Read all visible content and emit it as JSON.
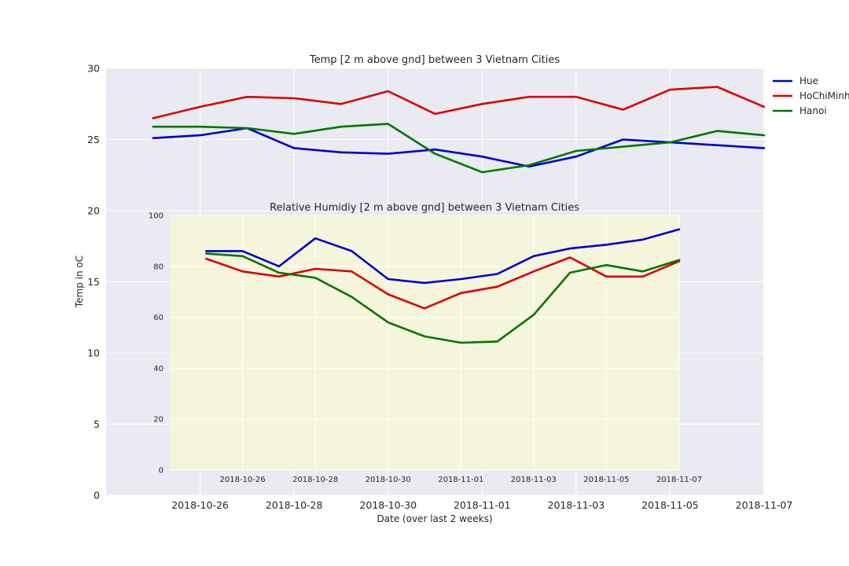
{
  "chart_data": [
    {
      "type": "line",
      "title": "Temp  [2 m above gnd] between 3 Vietnam Cities",
      "xlabel": "Date (over last 2 weeks)",
      "ylabel": "Temp in oC",
      "x_ticks": [
        "2018-10-26",
        "2018-10-28",
        "2018-10-30",
        "2018-11-01",
        "2018-11-03",
        "2018-11-05",
        "2018-11-07"
      ],
      "y_ticks": [
        0,
        5,
        10,
        15,
        20,
        25,
        30
      ],
      "xlim": [
        "2018-10-24",
        "2018-11-07"
      ],
      "ylim": [
        0,
        30
      ],
      "grid": true,
      "legend": "outside-right",
      "x": [
        "2018-10-25",
        "2018-10-26",
        "2018-10-27",
        "2018-10-28",
        "2018-10-29",
        "2018-10-30",
        "2018-10-31",
        "2018-11-01",
        "2018-11-02",
        "2018-11-03",
        "2018-11-04",
        "2018-11-05",
        "2018-11-06",
        "2018-11-07"
      ],
      "series": [
        {
          "name": "Hue",
          "color": "#0000cc",
          "values": [
            25.1,
            25.3,
            25.8,
            24.4,
            24.1,
            24.0,
            24.3,
            23.8,
            23.1,
            23.8,
            25.0,
            24.8,
            24.6,
            24.4
          ]
        },
        {
          "name": "HoChiMinh",
          "color": "#dd0000",
          "values": [
            26.5,
            27.3,
            28.0,
            27.9,
            27.5,
            28.4,
            26.8,
            27.5,
            28.0,
            28.0,
            27.1,
            28.5,
            28.7,
            27.3
          ]
        },
        {
          "name": "Hanoi",
          "color": "#007700",
          "values": [
            25.9,
            25.9,
            25.8,
            25.4,
            25.9,
            26.1,
            24.0,
            22.7,
            23.2,
            24.2,
            24.5,
            24.8,
            25.6,
            25.3
          ]
        }
      ]
    },
    {
      "type": "line",
      "title": "Relative Humidiy  [2 m above gnd] between 3 Vietnam Cities",
      "x_ticks": [
        "2018-10-26",
        "2018-10-28",
        "2018-10-30",
        "2018-11-01",
        "2018-11-03",
        "2018-11-05",
        "2018-11-07"
      ],
      "y_ticks": [
        0,
        20,
        40,
        60,
        80,
        100
      ],
      "xlim": [
        "2018-10-24",
        "2018-11-07"
      ],
      "ylim": [
        0,
        100
      ],
      "grid": true,
      "background": "#f5f5dc",
      "x": [
        "2018-10-25",
        "2018-10-26",
        "2018-10-27",
        "2018-10-28",
        "2018-10-29",
        "2018-10-30",
        "2018-10-31",
        "2018-11-01",
        "2018-11-02",
        "2018-11-03",
        "2018-11-04",
        "2018-11-05",
        "2018-11-06",
        "2018-11-07"
      ],
      "series": [
        {
          "name": "Hue",
          "color": "#0000cc",
          "values": [
            86,
            86,
            80,
            91,
            86,
            75,
            73.5,
            75,
            77,
            84,
            87,
            88.5,
            90.5,
            94.5
          ]
        },
        {
          "name": "HoChiMinh",
          "color": "#dd0000",
          "values": [
            83,
            78,
            76,
            79,
            78,
            69,
            63.5,
            69.5,
            72,
            78,
            83.5,
            76,
            76,
            82
          ]
        },
        {
          "name": "Hanoi",
          "color": "#007700",
          "values": [
            85,
            84,
            77.5,
            75.5,
            68,
            58,
            52.5,
            50,
            50.5,
            61,
            77.5,
            80.5,
            78,
            82.5
          ]
        }
      ]
    }
  ]
}
